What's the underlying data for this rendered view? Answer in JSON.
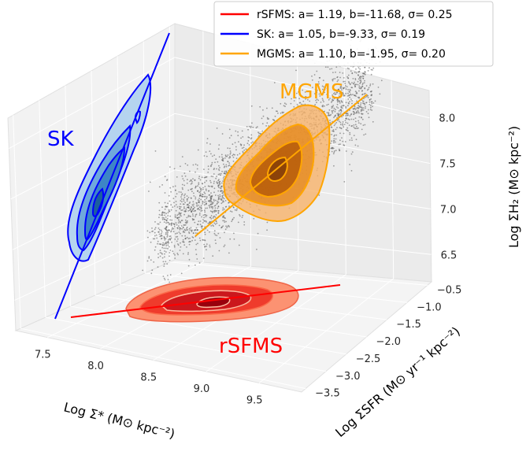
{
  "chart_data": {
    "type": "scatter",
    "subtype": "3d-scatter-with-contours",
    "title": "",
    "axes": {
      "x": {
        "label": "Log Σ* (M⊙ kpc⁻²)",
        "ticks": [
          "7.5",
          "8.0",
          "8.5",
          "9.0",
          "9.5"
        ],
        "range": [
          7.2,
          9.9
        ]
      },
      "y": {
        "label": "Log ΣSFR (M⊙ yr⁻¹ kpc⁻²)",
        "ticks": [
          "-3.5",
          "-3.0",
          "-2.5",
          "-2.0",
          "-1.5",
          "-1.0",
          "-0.5"
        ],
        "range": [
          -3.6,
          -0.4
        ]
      },
      "z": {
        "label": "Log ΣH₂ (M⊙ kpc⁻²)",
        "ticks": [
          "6.5",
          "7.0",
          "7.5",
          "8.0"
        ],
        "range": [
          6.2,
          8.3
        ]
      }
    },
    "grid": true,
    "legend": {
      "position": "top-right",
      "entries": [
        {
          "label": "rSFMS: a= 1.19, b=-11.68, σ= 0.25",
          "color": "#ff0000"
        },
        {
          "label": "SK: a= 1.05, b=-9.33, σ= 0.19",
          "color": "#0000ff"
        },
        {
          "label": "MGMS: a= 1.10, b=-1.95, σ= 0.20",
          "color": "#ffa500"
        }
      ]
    },
    "series": [
      {
        "name": "rSFMS",
        "relation": "Log ΣSFR vs Log Σ*",
        "slope": 1.19,
        "intercept": -11.68,
        "sigma": 0.25,
        "color": "#ff0000",
        "projection": "bottom plane"
      },
      {
        "name": "SK",
        "relation": "Log ΣH₂ vs Log ΣSFR",
        "slope": 1.05,
        "intercept": -9.33,
        "sigma": 0.19,
        "color": "#0000ff",
        "projection": "left wall"
      },
      {
        "name": "MGMS",
        "relation": "Log ΣH₂ vs Log Σ*",
        "slope": 1.1,
        "intercept": -1.95,
        "sigma": 0.2,
        "color": "#ffa500",
        "projection": "back wall"
      }
    ],
    "annotations": [
      {
        "text": "SK",
        "color": "#0000ff"
      },
      {
        "text": "MGMS",
        "color": "#ffa500"
      },
      {
        "text": "rSFMS",
        "color": "#ff0000"
      }
    ],
    "scatter": {
      "color": "#555555",
      "description": "3D point cloud of spaxels"
    }
  }
}
